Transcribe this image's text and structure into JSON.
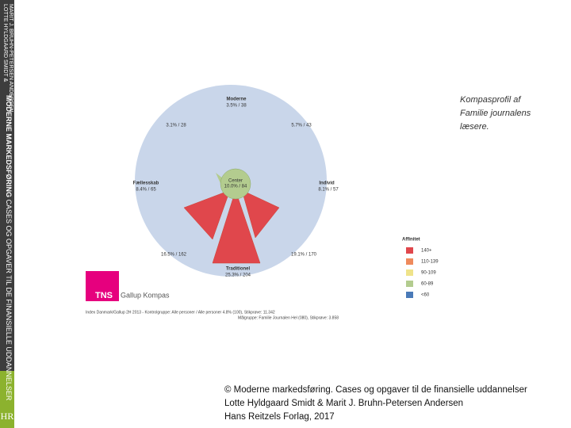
{
  "sidebar": {
    "authors": [
      "LOTTE HYLDGAARD SMIDT &",
      "MARIT J. BRUHN-PETERSEN ANDERSEN"
    ],
    "title_bold": "MODERNE MARKEDSFØRING",
    "title_rest": "CASES OG OPGAVER TIL DE FINANSIELLE UDDANNELSER",
    "logo": "HR"
  },
  "compass": {
    "labels": [
      {
        "name": "Moderne",
        "value": "3.5% / 38"
      },
      {
        "name": null,
        "value": "3.1% / 28"
      },
      {
        "name": null,
        "value": "5.7% / 43"
      },
      {
        "name": "Fællesskab",
        "value": "8.4% / 65"
      },
      {
        "name": "Center",
        "value": "10.0% / 84"
      },
      {
        "name": "Individ",
        "value": "8.1% / 57"
      },
      {
        "name": null,
        "value": "16.5% / 162"
      },
      {
        "name": null,
        "value": "19.1% / 170"
      },
      {
        "name": "Traditionel",
        "value": "25.3% / 204"
      }
    ]
  },
  "note": [
    "Kompasprofil af",
    "Familie journalens",
    "læsere."
  ],
  "legend": {
    "title": "Affinitet",
    "items": [
      {
        "label": "140+",
        "color": "#e0474c"
      },
      {
        "label": "110-139",
        "color": "#ef8a5c"
      },
      {
        "label": "90-109",
        "color": "#efe38a"
      },
      {
        "label": "60-89",
        "color": "#b3cc8f"
      },
      {
        "label": "<60",
        "color": "#4a7ab8"
      }
    ]
  },
  "logo": {
    "brand": "TNS",
    "product": "Gallup Kompas"
  },
  "footnote": [
    "Index Danmark/Gallup 2H 2013 - Kontrolgruppe: Alle personer / Alle personer 4.8% (100), Stikprøve: 11.342",
    "Målgruppe: Familie Journalen Hel (080), Stikprøve: 3.858"
  ],
  "caption": [
    "© Moderne markedsføring. Cases og opgaver til de finansielle uddannelser",
    "Lotte Hyldgaard Smidt & Marit J. Bruhn-Petersen Andersen",
    "Hans Reitzels Forlag, 2017"
  ]
}
